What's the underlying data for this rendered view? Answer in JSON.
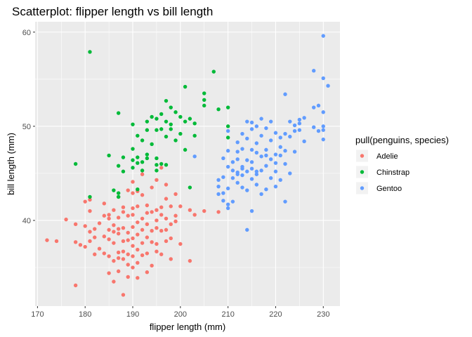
{
  "chart_data": {
    "type": "scatter",
    "title": "Scatterplot: flipper length vs bill length",
    "xlabel": "flipper length (mm)",
    "ylabel": "bill length (mm)",
    "xlim": [
      169.5,
      233.5
    ],
    "ylim": [
      30.9,
      61.1
    ],
    "xticks": [
      170,
      180,
      190,
      200,
      210,
      220,
      230
    ],
    "yticks": [
      40,
      50,
      60
    ],
    "grid": true,
    "legend": {
      "title": "pull(penguins, species)",
      "position": "right"
    },
    "series": [
      {
        "name": "Adelie",
        "color": "#F8766D",
        "points": [
          [
            172,
            37.9
          ],
          [
            174,
            37.8
          ],
          [
            176,
            40.1
          ],
          [
            178,
            33.1
          ],
          [
            178,
            37.7
          ],
          [
            178,
            39.6
          ],
          [
            179,
            37.4
          ],
          [
            180,
            39.4
          ],
          [
            180,
            42.0
          ],
          [
            180,
            37.2
          ],
          [
            181,
            42.2
          ],
          [
            181,
            38.8
          ],
          [
            181,
            37.8
          ],
          [
            181,
            41.0
          ],
          [
            182,
            39.1
          ],
          [
            182,
            36.4
          ],
          [
            182,
            38.2
          ],
          [
            183,
            37.0
          ],
          [
            183,
            39.7
          ],
          [
            184,
            40.5
          ],
          [
            184,
            36.5
          ],
          [
            184,
            38.3
          ],
          [
            184,
            41.8
          ],
          [
            185,
            40.6
          ],
          [
            185,
            36.2
          ],
          [
            185,
            34.4
          ],
          [
            185,
            39.0
          ],
          [
            185,
            38.0
          ],
          [
            185,
            40.2
          ],
          [
            186,
            39.5
          ],
          [
            186,
            37.6
          ],
          [
            186,
            41.1
          ],
          [
            186,
            35.7
          ],
          [
            186,
            38.8
          ],
          [
            186,
            33.5
          ],
          [
            187,
            39.1
          ],
          [
            187,
            40.3
          ],
          [
            187,
            38.6
          ],
          [
            187,
            36.6
          ],
          [
            187,
            42.5
          ],
          [
            187,
            34.6
          ],
          [
            187,
            36.0
          ],
          [
            188,
            37.8
          ],
          [
            188,
            35.9
          ],
          [
            188,
            41.4
          ],
          [
            188,
            40.9
          ],
          [
            188,
            36.7
          ],
          [
            188,
            32.1
          ],
          [
            188,
            39.2
          ],
          [
            189,
            38.7
          ],
          [
            189,
            35.3
          ],
          [
            189,
            40.5
          ],
          [
            189,
            36.4
          ],
          [
            189,
            43.2
          ],
          [
            189,
            37.9
          ],
          [
            189,
            34.0
          ],
          [
            190,
            39.3
          ],
          [
            190,
            41.3
          ],
          [
            190,
            36.2
          ],
          [
            190,
            38.1
          ],
          [
            190,
            42.9
          ],
          [
            190,
            35.0
          ],
          [
            190,
            40.6
          ],
          [
            190,
            37.3
          ],
          [
            190,
            44.1
          ],
          [
            191,
            39.8
          ],
          [
            191,
            38.5
          ],
          [
            191,
            36.9
          ],
          [
            191,
            41.5
          ],
          [
            191,
            35.5
          ],
          [
            191,
            43.1
          ],
          [
            191,
            33.9
          ],
          [
            192,
            40.2
          ],
          [
            192,
            37.6
          ],
          [
            192,
            39.0
          ],
          [
            192,
            42.7
          ],
          [
            192,
            36.3
          ],
          [
            192,
            44.9
          ],
          [
            193,
            38.2
          ],
          [
            193,
            40.8
          ],
          [
            193,
            36.5
          ],
          [
            193,
            41.6
          ],
          [
            193,
            34.5
          ],
          [
            193,
            39.6
          ],
          [
            194,
            37.7
          ],
          [
            194,
            40.9
          ],
          [
            194,
            43.5
          ],
          [
            194,
            38.9
          ],
          [
            194,
            35.2
          ],
          [
            195,
            39.2
          ],
          [
            195,
            41.1
          ],
          [
            195,
            37.5
          ],
          [
            195,
            40.0
          ],
          [
            195,
            44.3
          ],
          [
            195,
            36.7
          ],
          [
            196,
            38.9
          ],
          [
            196,
            41.4
          ],
          [
            196,
            40.6
          ],
          [
            196,
            45.6
          ],
          [
            196,
            36.4
          ],
          [
            197,
            39.0
          ],
          [
            197,
            42.3
          ],
          [
            197,
            40.2
          ],
          [
            197,
            37.8
          ],
          [
            197,
            43.8
          ],
          [
            198,
            39.6
          ],
          [
            198,
            41.5
          ],
          [
            198,
            38.1
          ],
          [
            198,
            35.9
          ],
          [
            199,
            40.5
          ],
          [
            199,
            42.8
          ],
          [
            199,
            39.9
          ],
          [
            200,
            41.5
          ],
          [
            200,
            37.5
          ],
          [
            202,
            35.7
          ],
          [
            202,
            41.1
          ],
          [
            203,
            40.6
          ],
          [
            205,
            41.0
          ],
          [
            208,
            40.9
          ]
        ]
      },
      {
        "name": "Chinstrap",
        "color": "#00BA38",
        "points": [
          [
            178,
            46.0
          ],
          [
            181,
            57.9
          ],
          [
            181,
            42.5
          ],
          [
            185,
            46.9
          ],
          [
            186,
            43.2
          ],
          [
            187,
            51.4
          ],
          [
            187,
            45.8
          ],
          [
            187,
            42.5
          ],
          [
            187,
            42.9
          ],
          [
            188,
            45.2
          ],
          [
            188,
            46.7
          ],
          [
            190,
            50.2
          ],
          [
            190,
            46.4
          ],
          [
            190,
            47.6
          ],
          [
            190,
            45.6
          ],
          [
            191,
            49.0
          ],
          [
            191,
            46.1
          ],
          [
            191,
            43.3
          ],
          [
            191,
            46.7
          ],
          [
            192,
            48.5
          ],
          [
            192,
            46.2
          ],
          [
            192,
            45.3
          ],
          [
            193,
            50.5
          ],
          [
            193,
            47.0
          ],
          [
            193,
            49.6
          ],
          [
            193,
            46.6
          ],
          [
            194,
            51.0
          ],
          [
            194,
            48.1
          ],
          [
            195,
            50.8
          ],
          [
            195,
            46.6
          ],
          [
            195,
            45.9
          ],
          [
            195,
            49.6
          ],
          [
            195,
            45.3
          ],
          [
            196,
            51.3
          ],
          [
            196,
            49.7
          ],
          [
            196,
            46.0
          ],
          [
            197,
            52.7
          ],
          [
            197,
            50.5
          ],
          [
            197,
            48.9
          ],
          [
            197,
            45.9
          ],
          [
            198,
            50.2
          ],
          [
            198,
            52.0
          ],
          [
            198,
            49.7
          ],
          [
            199,
            51.5
          ],
          [
            199,
            48.5
          ],
          [
            200,
            49.2
          ],
          [
            200,
            51.0
          ],
          [
            201,
            50.5
          ],
          [
            201,
            47.5
          ],
          [
            201,
            54.2
          ],
          [
            202,
            50.8
          ],
          [
            203,
            50.3
          ],
          [
            203,
            49.0
          ],
          [
            205,
            52.8
          ],
          [
            205,
            53.5
          ],
          [
            207,
            55.8
          ],
          [
            208,
            51.8
          ],
          [
            210,
            52.0
          ],
          [
            210,
            50.0
          ],
          [
            210,
            48.8
          ],
          [
            202,
            43.5
          ],
          [
            205,
            52.2
          ]
        ]
      },
      {
        "name": "Gentoo",
        "color": "#619CFF",
        "points": [
          [
            203,
            46.8
          ],
          [
            208,
            44.3
          ],
          [
            208,
            43.6
          ],
          [
            208,
            42.8
          ],
          [
            209,
            46.6
          ],
          [
            209,
            44.6
          ],
          [
            209,
            42.9
          ],
          [
            209,
            42.1
          ],
          [
            210,
            47.4
          ],
          [
            210,
            45.7
          ],
          [
            210,
            43.4
          ],
          [
            210,
            49.5
          ],
          [
            210,
            41.3
          ],
          [
            210,
            41.7
          ],
          [
            211,
            45.3
          ],
          [
            211,
            46.2
          ],
          [
            211,
            44.5
          ],
          [
            211,
            42.0
          ],
          [
            212,
            47.3
          ],
          [
            212,
            44.9
          ],
          [
            212,
            46.5
          ],
          [
            212,
            45.1
          ],
          [
            212,
            48.3
          ],
          [
            213,
            49.2
          ],
          [
            213,
            45.5
          ],
          [
            213,
            47.6
          ],
          [
            213,
            43.5
          ],
          [
            213,
            44.8
          ],
          [
            214,
            46.4
          ],
          [
            214,
            48.7
          ],
          [
            214,
            45.2
          ],
          [
            214,
            43.2
          ],
          [
            214,
            50.5
          ],
          [
            215,
            46.2
          ],
          [
            215,
            49.7
          ],
          [
            215,
            45.5
          ],
          [
            215,
            47.5
          ],
          [
            215,
            50.4
          ],
          [
            215,
            41.0
          ],
          [
            216,
            47.2
          ],
          [
            216,
            44.9
          ],
          [
            216,
            45.2
          ],
          [
            216,
            50.0
          ],
          [
            216,
            48.2
          ],
          [
            216,
            43.8
          ],
          [
            217,
            46.8
          ],
          [
            217,
            49.0
          ],
          [
            217,
            45.3
          ],
          [
            217,
            42.8
          ],
          [
            217,
            50.8
          ],
          [
            218,
            47.5
          ],
          [
            218,
            45.8
          ],
          [
            218,
            49.8
          ],
          [
            218,
            43.3
          ],
          [
            219,
            46.5
          ],
          [
            219,
            48.5
          ],
          [
            219,
            44.5
          ],
          [
            219,
            50.5
          ],
          [
            220,
            47.0
          ],
          [
            220,
            49.3
          ],
          [
            220,
            46.1
          ],
          [
            220,
            45.2
          ],
          [
            220,
            43.6
          ],
          [
            221,
            47.8
          ],
          [
            221,
            46.9
          ],
          [
            221,
            48.8
          ],
          [
            221,
            44.3
          ],
          [
            222,
            49.2
          ],
          [
            222,
            46.0
          ],
          [
            222,
            53.4
          ],
          [
            222,
            47.4
          ],
          [
            223,
            48.9
          ],
          [
            223,
            50.5
          ],
          [
            223,
            45.0
          ],
          [
            224,
            49.5
          ],
          [
            224,
            47.3
          ],
          [
            224,
            50.1
          ],
          [
            225,
            50.7
          ],
          [
            225,
            49.6
          ],
          [
            225,
            50.3
          ],
          [
            226,
            48.4
          ],
          [
            226,
            50.9
          ],
          [
            228,
            55.9
          ],
          [
            228,
            52.0
          ],
          [
            228,
            49.9
          ],
          [
            229,
            52.2
          ],
          [
            229,
            49.5
          ],
          [
            230,
            59.6
          ],
          [
            230,
            55.1
          ],
          [
            230,
            50.0
          ],
          [
            230,
            49.6
          ],
          [
            230,
            48.6
          ],
          [
            230,
            51.5
          ],
          [
            231,
            54.3
          ],
          [
            213,
            45.7
          ],
          [
            215,
            44.4
          ],
          [
            218,
            46.9
          ],
          [
            222,
            42.0
          ],
          [
            214,
            39.0
          ],
          [
            212,
            44.0
          ]
        ]
      }
    ]
  }
}
